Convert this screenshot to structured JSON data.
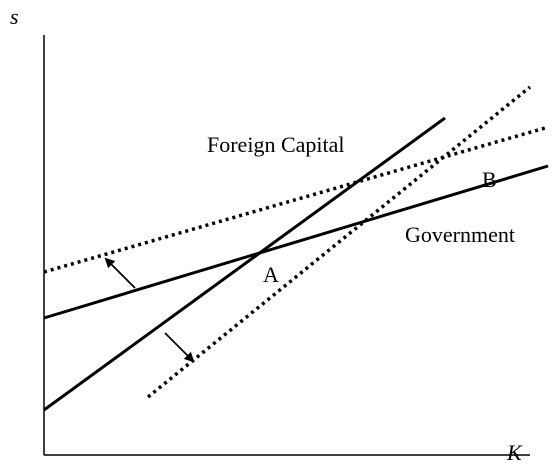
{
  "axes": {
    "y_label": "s",
    "x_label": "K"
  },
  "curves": {
    "foreign_capital": "Foreign Capital",
    "government": "Government"
  },
  "points": {
    "a": "A",
    "b": "B"
  }
}
